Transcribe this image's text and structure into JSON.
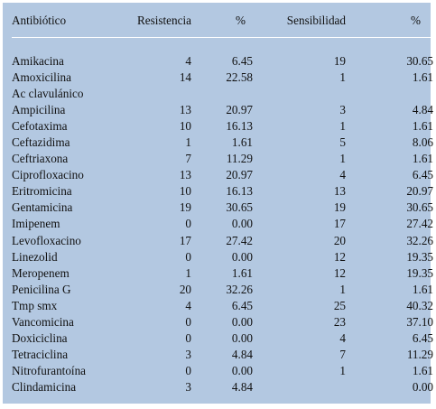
{
  "table": {
    "headers": [
      "Antibiótico",
      "Resistencia",
      "%",
      "Sensibilidad",
      "%"
    ],
    "rows": [
      [
        "Amikacina",
        "4",
        "6.45",
        "19",
        "30.65"
      ],
      [
        "Amoxicilina",
        "14",
        "22.58",
        "1",
        "1.61"
      ],
      [
        "Ac clavulánico",
        "",
        "",
        "",
        ""
      ],
      [
        "Ampicilina",
        "13",
        "20.97",
        "3",
        "4.84"
      ],
      [
        "Cefotaxima",
        "10",
        "16.13",
        "1",
        "1.61"
      ],
      [
        "Ceftazidima",
        "1",
        "1.61",
        "5",
        "8.06"
      ],
      [
        "Ceftriaxona",
        "7",
        "11.29",
        "1",
        "1.61"
      ],
      [
        "Ciprofloxacino",
        "13",
        "20.97",
        "4",
        "6.45"
      ],
      [
        "Eritromicina",
        "10",
        "16.13",
        "13",
        "20.97"
      ],
      [
        "Gentamicina",
        "19",
        "30.65",
        "19",
        "30.65"
      ],
      [
        "Imipenem",
        "0",
        "0.00",
        "17",
        "27.42"
      ],
      [
        "Levofloxacino",
        "17",
        "27.42",
        "20",
        "32.26"
      ],
      [
        "Linezolid",
        "0",
        "0.00",
        "12",
        "19.35"
      ],
      [
        "Meropenem",
        "1",
        "1.61",
        "12",
        "19.35"
      ],
      [
        "Penicilina G",
        "20",
        "32.26",
        "1",
        "1.61"
      ],
      [
        "Tmp smx",
        "4",
        "6.45",
        "25",
        "40.32"
      ],
      [
        "Vancomicina",
        "0",
        "0.00",
        "23",
        "37.10"
      ],
      [
        "Doxiciclina",
        "0",
        "0.00",
        "4",
        "6.45"
      ],
      [
        "Tetraciclina",
        "3",
        "4.84",
        "7",
        "11.29"
      ],
      [
        "Nitrofurantoína",
        "0",
        "0.00",
        "1",
        "1.61"
      ],
      [
        "Clindamicina",
        "3",
        "4.84",
        "",
        "0.00"
      ]
    ]
  }
}
